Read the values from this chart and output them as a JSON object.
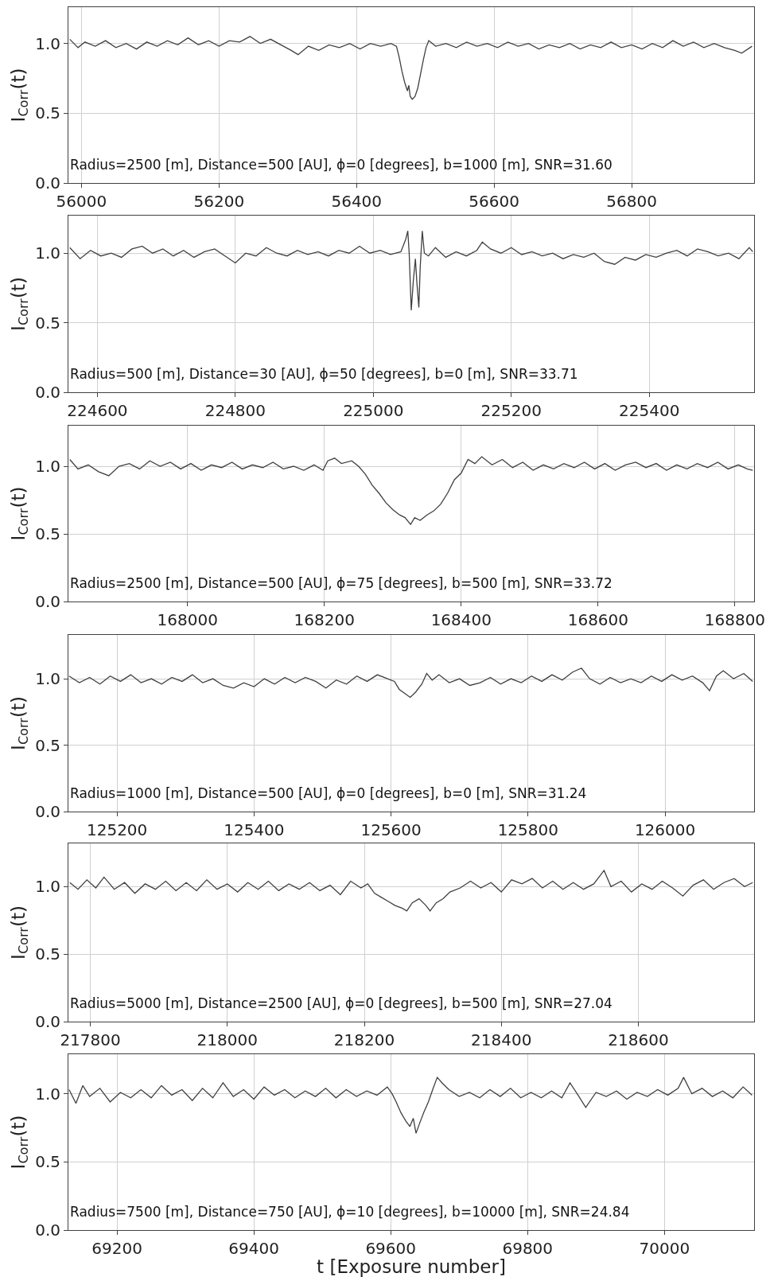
{
  "chart_data": [
    {
      "type": "line",
      "color": "#404040",
      "ylabel": "I$_{Corr}$(t)",
      "annotations": [
        "Radius=2500 [m], Distance=500 [AU], ϕ=0 [degrees], b=1000 [m], SNR=31.60"
      ],
      "xlim": [
        55981,
        56978
      ],
      "ylim": [
        0,
        1.26
      ],
      "xticks": [
        56000,
        56200,
        56400,
        56600,
        56800
      ],
      "yticks": [
        {
          "value": 0,
          "label": "0.0"
        },
        {
          "value": 0.5,
          "label": "0.5"
        },
        {
          "value": 1,
          "label": "1.0"
        }
      ],
      "grid": true,
      "x": [
        55983,
        55995,
        56005,
        56020,
        56035,
        56050,
        56065,
        56080,
        56095,
        56110,
        56125,
        56140,
        56155,
        56170,
        56185,
        56200,
        56215,
        56230,
        56245,
        56260,
        56275,
        56290,
        56305,
        56315,
        56330,
        56345,
        56360,
        56375,
        56390,
        56405,
        56420,
        56435,
        56450,
        56458,
        56462,
        56466,
        56470,
        56474,
        56476,
        56478,
        56481,
        56485,
        56489,
        56493,
        56497,
        56501,
        56505,
        56515,
        56530,
        56545,
        56560,
        56575,
        56590,
        56605,
        56620,
        56635,
        56650,
        56665,
        56680,
        56695,
        56710,
        56725,
        56740,
        56755,
        56770,
        56785,
        56800,
        56815,
        56830,
        56845,
        56860,
        56875,
        56890,
        56905,
        56920,
        56935,
        56950,
        56960,
        56975
      ],
      "values": [
        1.03,
        0.97,
        1.01,
        0.98,
        1.02,
        0.97,
        1.0,
        0.96,
        1.01,
        0.98,
        1.02,
        0.99,
        1.04,
        0.99,
        1.02,
        0.98,
        1.02,
        1.01,
        1.05,
        1.0,
        1.03,
        0.99,
        0.95,
        0.92,
        0.98,
        0.95,
        0.99,
        0.97,
        1.0,
        0.96,
        1.0,
        0.98,
        1.0,
        0.98,
        0.9,
        0.8,
        0.72,
        0.66,
        0.7,
        0.62,
        0.6,
        0.62,
        0.68,
        0.78,
        0.88,
        0.97,
        1.02,
        0.98,
        1.0,
        0.97,
        1.01,
        0.98,
        1.0,
        0.97,
        1.01,
        0.98,
        1.0,
        0.96,
        0.99,
        0.97,
        1.0,
        0.96,
        0.99,
        0.97,
        1.01,
        0.97,
        0.99,
        0.96,
        1.0,
        0.97,
        1.02,
        0.98,
        1.01,
        0.97,
        1.0,
        0.97,
        0.95,
        0.93,
        0.98
      ]
    },
    {
      "type": "line",
      "color": "#404040",
      "ylabel": "I$_{Corr}$(t)",
      "annotations": [
        "Radius=500 [m], Distance=30 [AU], ϕ=50 [degrees], b=0 [m], SNR=33.71"
      ],
      "xlim": [
        224558,
        225552
      ],
      "ylim": [
        0,
        1.27
      ],
      "xticks": [
        224600,
        224800,
        225000,
        225200,
        225400
      ],
      "yticks": [
        {
          "value": 0,
          "label": "0.0"
        },
        {
          "value": 0.5,
          "label": "0.5"
        },
        {
          "value": 1,
          "label": "1.0"
        }
      ],
      "grid": true,
      "x": [
        224560,
        224575,
        224590,
        224605,
        224620,
        224635,
        224650,
        224665,
        224680,
        224695,
        224710,
        224725,
        224740,
        224755,
        224770,
        224785,
        224800,
        224815,
        224830,
        224845,
        224860,
        224875,
        224890,
        224905,
        224920,
        224935,
        224950,
        224965,
        224980,
        224995,
        225010,
        225025,
        225040,
        225047,
        225050,
        225052,
        225055,
        225058,
        225061,
        225063,
        225066,
        225068,
        225071,
        225074,
        225080,
        225090,
        225105,
        225120,
        225135,
        225150,
        225158,
        225170,
        225185,
        225200,
        225215,
        225230,
        225245,
        225260,
        225275,
        225290,
        225305,
        225320,
        225335,
        225350,
        225365,
        225380,
        225395,
        225410,
        225425,
        225440,
        225455,
        225470,
        225485,
        225500,
        225515,
        225530,
        225545,
        225550
      ],
      "values": [
        1.04,
        0.96,
        1.02,
        0.98,
        1.0,
        0.97,
        1.03,
        1.05,
        1.0,
        1.03,
        0.98,
        1.02,
        0.97,
        1.01,
        1.03,
        0.98,
        0.93,
        1.0,
        0.98,
        1.04,
        1.0,
        0.98,
        1.02,
        0.99,
        1.01,
        0.98,
        1.02,
        1.0,
        1.05,
        1.0,
        1.02,
        0.99,
        1.01,
        1.1,
        1.16,
        1.0,
        0.59,
        0.8,
        0.96,
        0.8,
        0.61,
        0.9,
        1.16,
        1.0,
        0.98,
        1.04,
        0.97,
        1.01,
        0.98,
        1.02,
        1.08,
        1.03,
        1.0,
        1.04,
        0.99,
        1.01,
        0.98,
        1.0,
        0.96,
        0.99,
        0.97,
        1.0,
        0.94,
        0.92,
        0.97,
        0.95,
        0.99,
        0.97,
        1.0,
        1.02,
        0.98,
        1.03,
        1.01,
        0.98,
        1.0,
        0.96,
        1.04,
        1.01
      ]
    },
    {
      "type": "line",
      "color": "#404040",
      "ylabel": "I$_{Corr}$(t)",
      "annotations": [
        "Radius=2500 [m], Distance=500 [AU], ϕ=75 [degrees], b=500 [m], SNR=33.72"
      ],
      "xlim": [
        167826,
        168828
      ],
      "ylim": [
        0,
        1.3
      ],
      "xticks": [
        168000,
        168200,
        168400,
        168600,
        168800
      ],
      "yticks": [
        {
          "value": 0,
          "label": "0.0"
        },
        {
          "value": 0.5,
          "label": "0.5"
        },
        {
          "value": 1,
          "label": "1.0"
        }
      ],
      "grid": true,
      "x": [
        167828,
        167840,
        167855,
        167870,
        167885,
        167900,
        167915,
        167930,
        167945,
        167960,
        167975,
        167990,
        168005,
        168020,
        168035,
        168050,
        168065,
        168080,
        168095,
        168110,
        168125,
        168140,
        168155,
        168170,
        168185,
        168198,
        168205,
        168215,
        168225,
        168240,
        168250,
        168260,
        168270,
        168280,
        168290,
        168300,
        168310,
        168318,
        168326,
        168332,
        168340,
        168350,
        168360,
        168370,
        168380,
        168390,
        168400,
        168410,
        168420,
        168430,
        168445,
        168460,
        168475,
        168490,
        168505,
        168520,
        168535,
        168550,
        168565,
        168580,
        168595,
        168610,
        168625,
        168640,
        168655,
        168670,
        168685,
        168700,
        168715,
        168730,
        168745,
        168760,
        168775,
        168790,
        168805,
        168818,
        168826
      ],
      "values": [
        1.05,
        0.98,
        1.01,
        0.96,
        0.93,
        1.0,
        1.02,
        0.98,
        1.04,
        1.0,
        1.03,
        0.98,
        1.02,
        0.97,
        1.01,
        0.99,
        1.03,
        0.98,
        1.01,
        0.99,
        1.03,
        0.98,
        1.0,
        0.97,
        1.01,
        0.97,
        1.04,
        1.06,
        1.02,
        1.04,
        1.0,
        0.94,
        0.86,
        0.8,
        0.73,
        0.68,
        0.64,
        0.62,
        0.57,
        0.62,
        0.6,
        0.64,
        0.67,
        0.72,
        0.8,
        0.9,
        0.95,
        1.05,
        1.02,
        1.07,
        1.01,
        1.05,
        0.99,
        1.03,
        0.97,
        1.01,
        0.98,
        1.02,
        0.99,
        1.03,
        0.98,
        1.02,
        0.97,
        1.01,
        1.03,
        0.99,
        1.02,
        0.97,
        1.01,
        0.98,
        1.02,
        0.99,
        1.03,
        0.98,
        1.01,
        0.98,
        0.97
      ]
    },
    {
      "type": "line",
      "color": "#404040",
      "ylabel": "I$_{Corr}$(t)",
      "annotations": [
        "Radius=1000 [m], Distance=500 [AU], ϕ=0 [degrees], b=0 [m], SNR=31.24"
      ],
      "xlim": [
        125129,
        126130
      ],
      "ylim": [
        0,
        1.33
      ],
      "xticks": [
        125200,
        125400,
        125600,
        125800,
        126000
      ],
      "yticks": [
        {
          "value": 0,
          "label": "0.0"
        },
        {
          "value": 0.5,
          "label": "0.5"
        },
        {
          "value": 1,
          "label": "1.0"
        }
      ],
      "grid": true,
      "x": [
        125130,
        125145,
        125160,
        125175,
        125190,
        125205,
        125220,
        125235,
        125250,
        125265,
        125280,
        125295,
        125310,
        125325,
        125340,
        125355,
        125370,
        125385,
        125400,
        125415,
        125430,
        125445,
        125460,
        125475,
        125490,
        125505,
        125520,
        125535,
        125550,
        125565,
        125580,
        125595,
        125605,
        125612,
        125620,
        125628,
        125636,
        125645,
        125652,
        125660,
        125670,
        125685,
        125700,
        125715,
        125730,
        125745,
        125760,
        125775,
        125790,
        125805,
        125820,
        125835,
        125850,
        125865,
        125878,
        125890,
        125905,
        125920,
        125935,
        125950,
        125965,
        125980,
        125995,
        126010,
        126025,
        126040,
        126055,
        126065,
        126075,
        126085,
        126100,
        126115,
        126128
      ],
      "values": [
        1.02,
        0.97,
        1.01,
        0.96,
        1.02,
        0.98,
        1.03,
        0.97,
        1.0,
        0.96,
        1.01,
        0.98,
        1.03,
        0.97,
        1.0,
        0.95,
        0.93,
        0.97,
        0.94,
        1.0,
        0.96,
        1.01,
        0.97,
        1.01,
        0.98,
        0.93,
        0.99,
        0.96,
        1.02,
        0.98,
        1.03,
        1.0,
        0.98,
        0.92,
        0.89,
        0.86,
        0.9,
        0.96,
        1.04,
        0.99,
        1.03,
        0.97,
        1.0,
        0.95,
        0.97,
        1.01,
        0.96,
        1.0,
        0.97,
        1.02,
        0.98,
        1.03,
        0.99,
        1.05,
        1.08,
        1.0,
        0.96,
        1.01,
        0.97,
        1.0,
        0.97,
        1.02,
        0.98,
        1.03,
        0.99,
        1.02,
        0.97,
        0.91,
        1.02,
        1.06,
        1.0,
        1.04,
        0.98
      ]
    },
    {
      "type": "line",
      "color": "#404040",
      "ylabel": "I$_{Corr}$(t)",
      "annotations": [
        "Radius=5000 [m], Distance=2500 [AU], ϕ=0 [degrees], b=500 [m], SNR=27.04"
      ],
      "xlim": [
        217768,
        218769
      ],
      "ylim": [
        0,
        1.32
      ],
      "xticks": [
        217800,
        218000,
        218200,
        218400,
        218600
      ],
      "yticks": [
        {
          "value": 0,
          "label": "0.0"
        },
        {
          "value": 0.5,
          "label": "0.5"
        },
        {
          "value": 1,
          "label": "1.0"
        }
      ],
      "grid": true,
      "x": [
        217770,
        217782,
        217795,
        217808,
        217820,
        217835,
        217850,
        217865,
        217880,
        217895,
        217910,
        217925,
        217940,
        217955,
        217970,
        217985,
        218000,
        218015,
        218030,
        218045,
        218060,
        218075,
        218090,
        218105,
        218120,
        218135,
        218150,
        218165,
        218180,
        218195,
        218205,
        218215,
        218225,
        218235,
        218245,
        218255,
        218262,
        218270,
        218280,
        218290,
        218296,
        218305,
        218315,
        218325,
        218340,
        218355,
        218370,
        218385,
        218400,
        218415,
        218430,
        218445,
        218460,
        218475,
        218490,
        218505,
        218520,
        218535,
        218550,
        218560,
        218575,
        218590,
        218605,
        218620,
        218635,
        218650,
        218665,
        218680,
        218695,
        218710,
        218725,
        218740,
        218755,
        218767
      ],
      "values": [
        1.03,
        0.98,
        1.05,
        0.99,
        1.07,
        0.98,
        1.03,
        0.95,
        1.02,
        0.98,
        1.04,
        0.97,
        1.03,
        0.97,
        1.05,
        0.98,
        1.02,
        0.96,
        1.03,
        0.98,
        1.04,
        0.97,
        1.02,
        0.98,
        1.03,
        0.97,
        1.01,
        0.94,
        1.04,
        0.99,
        1.02,
        0.95,
        0.92,
        0.89,
        0.86,
        0.84,
        0.82,
        0.88,
        0.91,
        0.86,
        0.82,
        0.88,
        0.91,
        0.96,
        0.99,
        1.04,
        0.99,
        1.03,
        0.96,
        1.05,
        1.02,
        1.06,
        0.99,
        1.04,
        0.98,
        1.03,
        0.98,
        1.02,
        1.12,
        1.0,
        1.04,
        0.96,
        1.02,
        0.98,
        1.04,
        0.99,
        0.93,
        1.01,
        1.05,
        0.98,
        1.03,
        1.06,
        1.0,
        1.03
      ]
    },
    {
      "type": "line",
      "color": "#404040",
      "ylabel": "I$_{Corr}$(t)",
      "xlabel": "t [Exposure number]",
      "annotations": [
        "Radius=7500 [m], Distance=750 [AU], ϕ=10 [degrees], b=10000 [m], SNR=24.84"
      ],
      "xlim": [
        69129,
        70131
      ],
      "ylim": [
        0,
        1.29
      ],
      "xticks": [
        69200,
        69400,
        69600,
        69800,
        70000
      ],
      "yticks": [
        {
          "value": 0,
          "label": "0.0"
        },
        {
          "value": 0.5,
          "label": "0.5"
        },
        {
          "value": 1,
          "label": "1.0"
        }
      ],
      "grid": true,
      "x": [
        69130,
        69140,
        69150,
        69160,
        69175,
        69190,
        69205,
        69220,
        69235,
        69250,
        69265,
        69280,
        69295,
        69310,
        69325,
        69340,
        69355,
        69370,
        69385,
        69400,
        69415,
        69430,
        69445,
        69460,
        69475,
        69490,
        69505,
        69520,
        69535,
        69550,
        69565,
        69580,
        69595,
        69602,
        69608,
        69615,
        69622,
        69628,
        69633,
        69637,
        69642,
        69648,
        69655,
        69662,
        69668,
        69675,
        69685,
        69700,
        69715,
        69730,
        69745,
        69760,
        69775,
        69790,
        69805,
        69820,
        69835,
        69850,
        69862,
        69875,
        69885,
        69900,
        69915,
        69930,
        69945,
        69960,
        69975,
        69990,
        70005,
        70020,
        70028,
        70040,
        70055,
        70070,
        70085,
        70100,
        70115,
        70128
      ],
      "values": [
        1.03,
        0.93,
        1.06,
        0.98,
        1.04,
        0.94,
        1.01,
        0.97,
        1.03,
        0.97,
        1.06,
        0.99,
        1.03,
        0.95,
        1.04,
        0.97,
        1.08,
        0.98,
        1.03,
        0.96,
        1.05,
        0.99,
        1.03,
        0.97,
        1.02,
        0.98,
        1.04,
        0.97,
        1.03,
        0.98,
        1.02,
        0.99,
        1.05,
        1.0,
        0.94,
        0.86,
        0.8,
        0.76,
        0.82,
        0.71,
        0.78,
        0.86,
        0.94,
        1.04,
        1.12,
        1.08,
        1.03,
        0.98,
        1.01,
        0.97,
        1.03,
        0.98,
        1.04,
        0.97,
        1.01,
        0.97,
        1.02,
        0.97,
        1.08,
        0.98,
        0.9,
        1.01,
        0.98,
        1.02,
        0.96,
        1.01,
        0.98,
        1.03,
        0.99,
        1.04,
        1.12,
        1.0,
        1.04,
        0.98,
        1.02,
        0.97,
        1.05,
        0.99
      ]
    }
  ]
}
